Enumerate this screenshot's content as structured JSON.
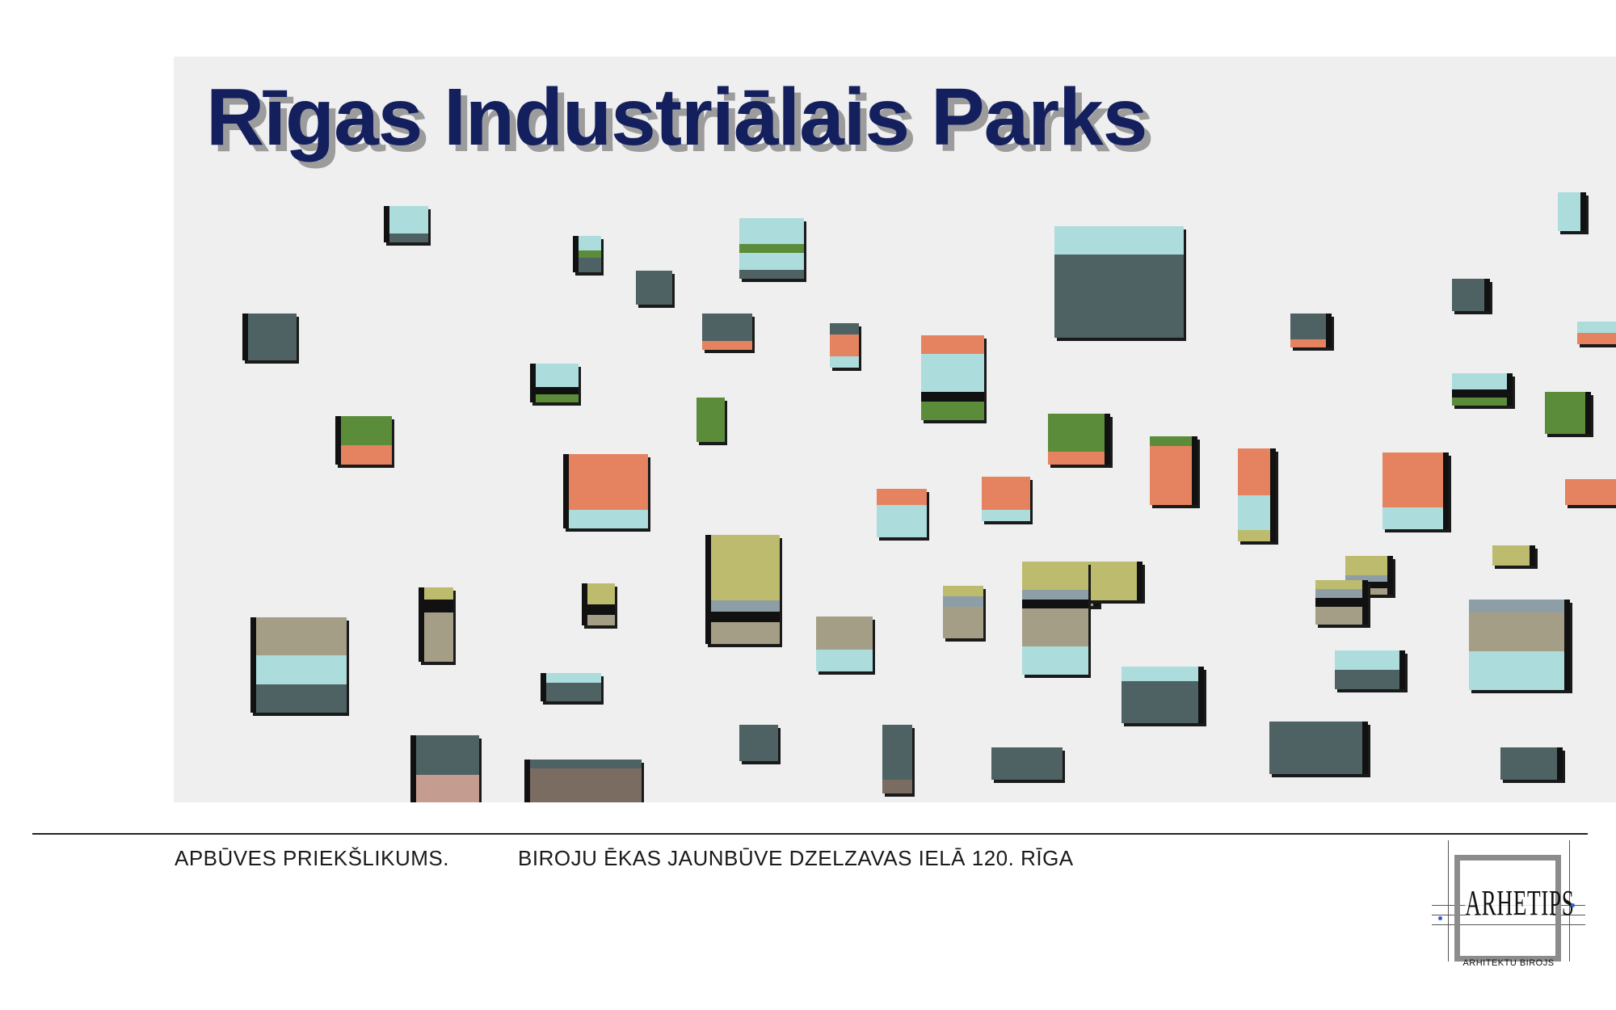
{
  "title": "Rīgas Industriālais Parks",
  "footer": {
    "left": "APBŪVES PRIEKŠLIKUMS.",
    "middle": "BIROJU ĒKAS JAUNBŪVE  DZELZAVAS IELĀ 120.   RĪGA"
  },
  "logo": {
    "name": "ARHETIPS",
    "subtitle": "ARHITEKTU BIROJS"
  },
  "colors": {
    "title": "#14205e",
    "facade_background": "#efefef",
    "cyan": "#acdcdc",
    "slate": "#4e6264",
    "orange": "#e5825f",
    "green": "#5a8c3a",
    "olive": "#bcbb6e",
    "khaki": "#a59e86"
  }
}
